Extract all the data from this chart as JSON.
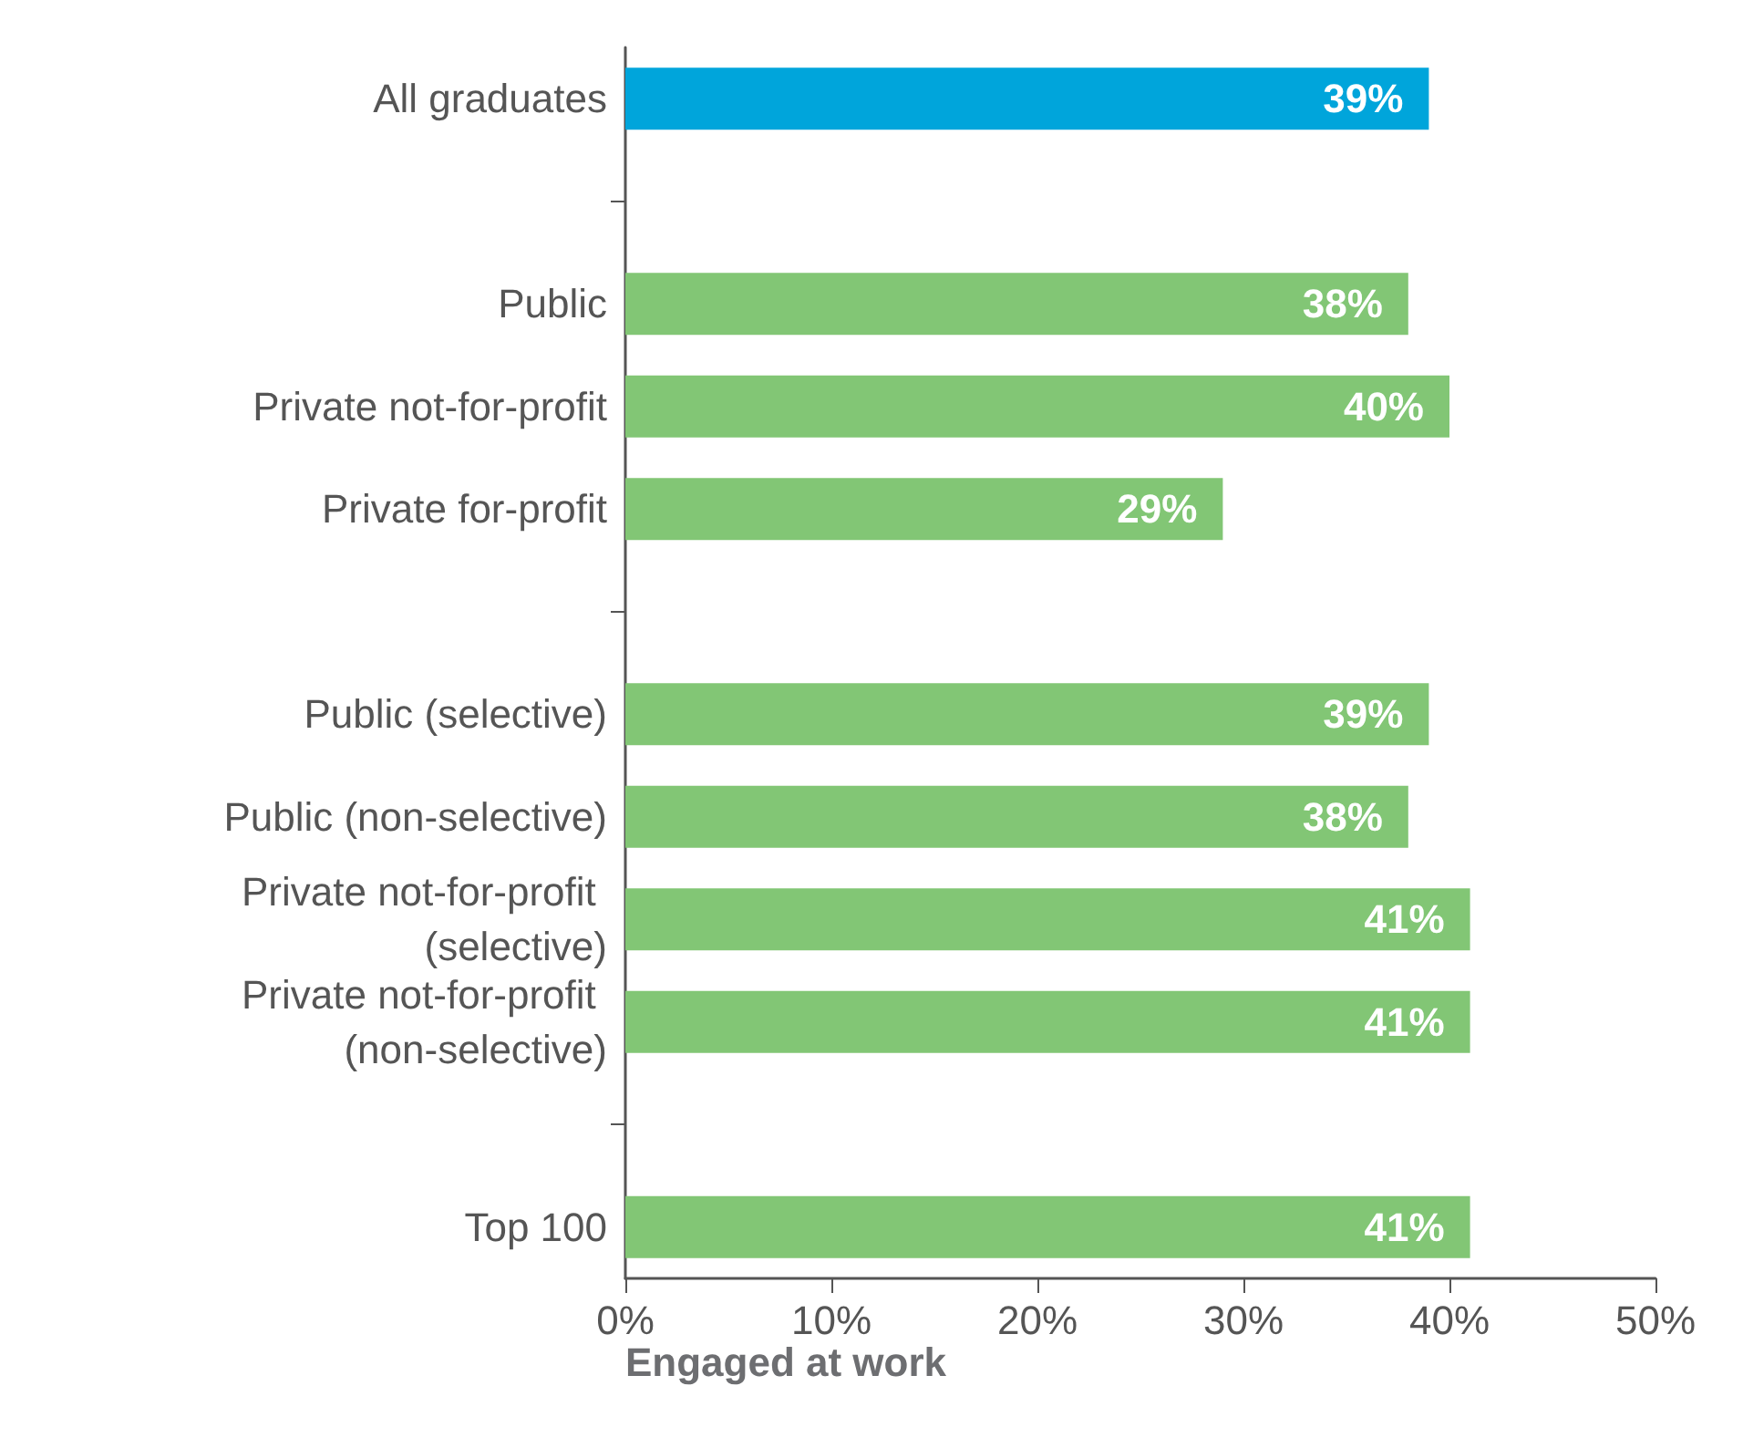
{
  "chart_data": {
    "type": "bar",
    "orientation": "horizontal",
    "categories": [
      "All graduates",
      null,
      "Public",
      "Private not-for-profit",
      "Private for-profit",
      null,
      "Public (selective)",
      "Public (non-selective)",
      "Private not-for-profit (selective)",
      "Private not-for-profit (non-selective)",
      null,
      "Top 100"
    ],
    "values": [
      39,
      null,
      38,
      40,
      29,
      null,
      39,
      38,
      41,
      41,
      null,
      41
    ],
    "value_labels": [
      "39%",
      null,
      "38%",
      "40%",
      "29%",
      null,
      "39%",
      "38%",
      "41%",
      "41%",
      null,
      "41%"
    ],
    "colors": [
      "#00a5db",
      null,
      "#82c675",
      "#82c675",
      "#82c675",
      null,
      "#82c675",
      "#82c675",
      "#82c675",
      "#82c675",
      null,
      "#82c675"
    ],
    "xlim": [
      0,
      50
    ],
    "xticks": [
      {
        "value": 0,
        "label": "0%"
      },
      {
        "value": 10,
        "label": "10%"
      },
      {
        "value": 20,
        "label": "20%"
      },
      {
        "value": 30,
        "label": "30%"
      },
      {
        "value": 40,
        "label": "40%"
      },
      {
        "value": 50,
        "label": "50%"
      }
    ],
    "xlabel": "Engaged at work",
    "grid": false
  }
}
